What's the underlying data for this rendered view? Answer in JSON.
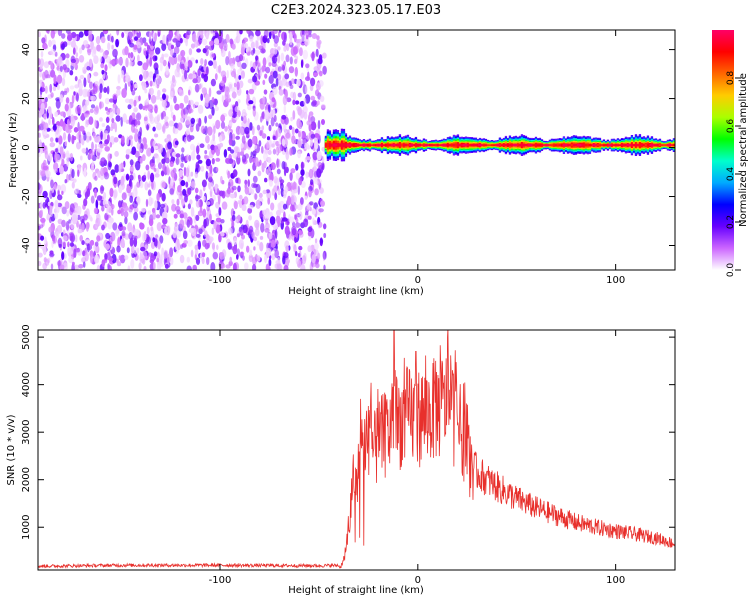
{
  "title": "C2E3.2024.323.05.17.E03",
  "chart_data": [
    {
      "type": "heatmap",
      "xlabel": "Height of straight line (km)",
      "ylabel": "Frequency (Hz)",
      "xlim": [
        -192,
        130
      ],
      "ylim": [
        -50,
        48
      ],
      "xticks": [
        -100,
        0,
        100
      ],
      "yticks": [
        -40,
        -20,
        0,
        20,
        40
      ],
      "colorbar": {
        "label": "Normalized spectral amplitude",
        "range": [
          0,
          1
        ],
        "ticks": [
          "0.0",
          "0.2",
          "0.4",
          "0.6",
          "0.8"
        ],
        "colors": [
          "#ffffff",
          "#cc66ff",
          "#6600ff",
          "#0000ff",
          "#00aaff",
          "#00ffcc",
          "#00ff00",
          "#aaff00",
          "#ffcc00",
          "#ff6600",
          "#ff0000",
          "#ff0066"
        ]
      },
      "noise_region": {
        "x": [
          -192,
          -47
        ],
        "amplitude": [
          0.02,
          0.2
        ]
      },
      "signal_band": {
        "x": [
          -47,
          130
        ],
        "center_frequency": 1,
        "half_width": [
          1.5,
          4.5
        ],
        "peak_amplitude": 0.95
      }
    },
    {
      "type": "line",
      "xlabel": "Height of straight line (km)",
      "ylabel": "SNR (10 * v/v)",
      "xlim": [
        -192,
        130
      ],
      "ylim": [
        100,
        5150
      ],
      "xticks": [
        -100,
        0,
        100
      ],
      "yticks": [
        1000,
        2000,
        3000,
        4000,
        5000
      ],
      "color": "#e8302c",
      "envelope": {
        "x": [
          -192,
          -150,
          -100,
          -50,
          -38,
          -35,
          -33,
          -30,
          -28,
          -25,
          -22,
          -20,
          -15,
          -10,
          -5,
          0,
          5,
          10,
          15,
          20,
          24,
          26,
          30,
          40,
          50,
          60,
          70,
          80,
          90,
          100,
          110,
          120,
          130
        ],
        "y": [
          180,
          200,
          200,
          190,
          200,
          900,
          1800,
          2200,
          2600,
          3000,
          2600,
          2800,
          3000,
          3200,
          3350,
          3300,
          3400,
          3500,
          3600,
          3200,
          2800,
          2400,
          2150,
          1850,
          1600,
          1400,
          1250,
          1100,
          1000,
          920,
          850,
          780,
          650
        ]
      },
      "noise_amplitude": 0.18,
      "peaks": [
        {
          "x": -12,
          "y": 5130
        },
        {
          "x": 15,
          "y": 5000
        },
        {
          "x": -1,
          "y": 4700
        },
        {
          "x": -29,
          "y": 3700
        },
        {
          "x": -25,
          "y": 3550
        },
        {
          "x": 9,
          "y": 4500
        },
        {
          "x": 27,
          "y": 2500
        }
      ]
    }
  ]
}
